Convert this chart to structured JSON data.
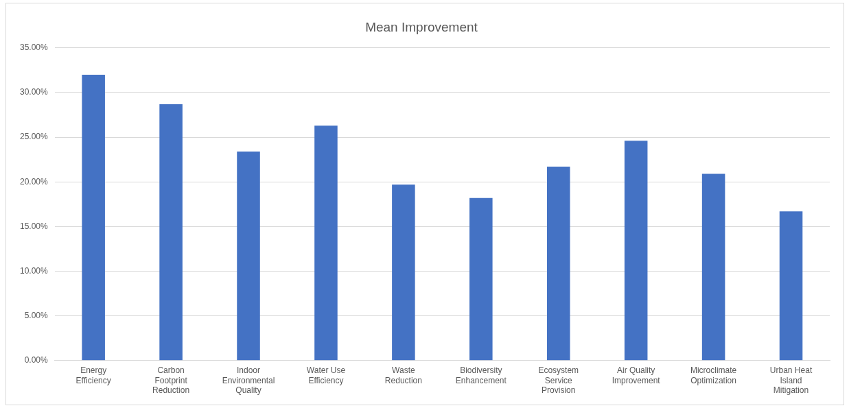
{
  "chart_data": {
    "type": "bar",
    "title": "Mean Improvement",
    "categories": [
      "Energy Efficiency",
      "Carbon Footprint Reduction",
      "Indoor Environmental Quality",
      "Water Use Efficiency",
      "Waste Reduction",
      "Biodiversity Enhancement",
      "Ecosystem Service Provision",
      "Air Quality Improvement",
      "Microclimate Optimization",
      "Urban Heat Island Mitigation"
    ],
    "values": [
      32.0,
      28.7,
      23.4,
      26.3,
      19.7,
      18.2,
      21.7,
      24.6,
      20.9,
      16.7
    ],
    "color": "#4472c4",
    "ylim": [
      0,
      35
    ],
    "yticks": [
      {
        "value": 0,
        "label": "0.00%"
      },
      {
        "value": 5,
        "label": "5.00%"
      },
      {
        "value": 10,
        "label": "10.00%"
      },
      {
        "value": 15,
        "label": "15.00%"
      },
      {
        "value": 20,
        "label": "20.00%"
      },
      {
        "value": 25,
        "label": "25.00%"
      },
      {
        "value": 30,
        "label": "30.00%"
      },
      {
        "value": 35,
        "label": "35.00%"
      }
    ],
    "grid": "y"
  }
}
